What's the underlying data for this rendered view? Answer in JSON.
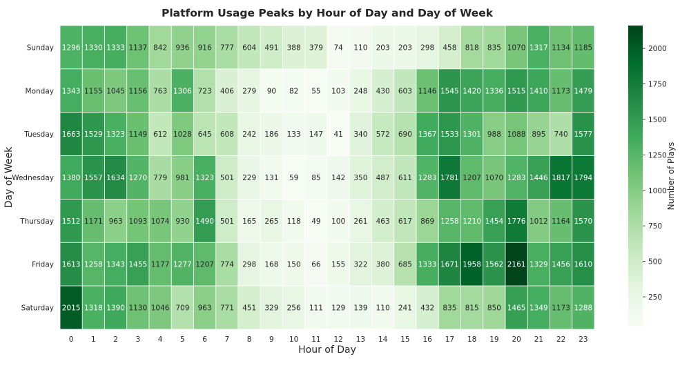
{
  "chart_data": {
    "type": "heatmap",
    "title": "Platform Usage Peaks by Hour of Day and Day of Week",
    "xlabel": "Hour of Day",
    "ylabel": "Day of Week",
    "x_categories": [
      "0",
      "1",
      "2",
      "3",
      "4",
      "5",
      "6",
      "7",
      "8",
      "9",
      "10",
      "11",
      "12",
      "13",
      "14",
      "15",
      "16",
      "17",
      "18",
      "19",
      "20",
      "21",
      "22",
      "23"
    ],
    "y_categories": [
      "Sunday",
      "Monday",
      "Tuesday",
      "Wednesday",
      "Thursday",
      "Friday",
      "Saturday"
    ],
    "values": [
      [
        1296,
        1330,
        1333,
        1137,
        842,
        936,
        916,
        777,
        604,
        491,
        388,
        379,
        74,
        110,
        203,
        203,
        298,
        458,
        818,
        835,
        1070,
        1317,
        1134,
        1185
      ],
      [
        1343,
        1155,
        1045,
        1156,
        763,
        1306,
        723,
        406,
        279,
        90,
        82,
        55,
        103,
        248,
        430,
        603,
        1146,
        1545,
        1420,
        1336,
        1515,
        1410,
        1173,
        1479
      ],
      [
        1663,
        1529,
        1323,
        1149,
        612,
        1028,
        645,
        608,
        242,
        186,
        133,
        147,
        41,
        340,
        572,
        690,
        1367,
        1533,
        1301,
        988,
        1088,
        895,
        740,
        1577
      ],
      [
        1380,
        1557,
        1634,
        1270,
        779,
        981,
        1323,
        501,
        229,
        131,
        59,
        85,
        142,
        350,
        487,
        611,
        1283,
        1781,
        1207,
        1070,
        1283,
        1446,
        1817,
        1794
      ],
      [
        1512,
        1171,
        963,
        1093,
        1074,
        930,
        1490,
        501,
        165,
        265,
        118,
        49,
        100,
        261,
        463,
        617,
        869,
        1258,
        1210,
        1454,
        1776,
        1012,
        1164,
        1570
      ],
      [
        1613,
        1258,
        1343,
        1455,
        1177,
        1277,
        1207,
        774,
        298,
        168,
        150,
        66,
        155,
        322,
        380,
        685,
        1333,
        1671,
        1958,
        1562,
        2161,
        1329,
        1456,
        1610
      ],
      [
        2015,
        1318,
        1390,
        1130,
        1046,
        709,
        963,
        771,
        451,
        329,
        256,
        111,
        129,
        139,
        110,
        241,
        432,
        835,
        815,
        850,
        1465,
        1349,
        1173,
        1288
      ]
    ],
    "colorbar": {
      "label": "Number of Plays",
      "ticks": [
        250,
        500,
        750,
        1000,
        1250,
        1500,
        1750,
        2000
      ],
      "range": [
        41,
        2161
      ],
      "colormap": "Greens",
      "colors": [
        "#f7fcf5",
        "#e5f5e0",
        "#c7e9c0",
        "#a1d99b",
        "#74c476",
        "#41ab5d",
        "#238b45",
        "#006d2c",
        "#00441b"
      ]
    },
    "grid": false
  }
}
